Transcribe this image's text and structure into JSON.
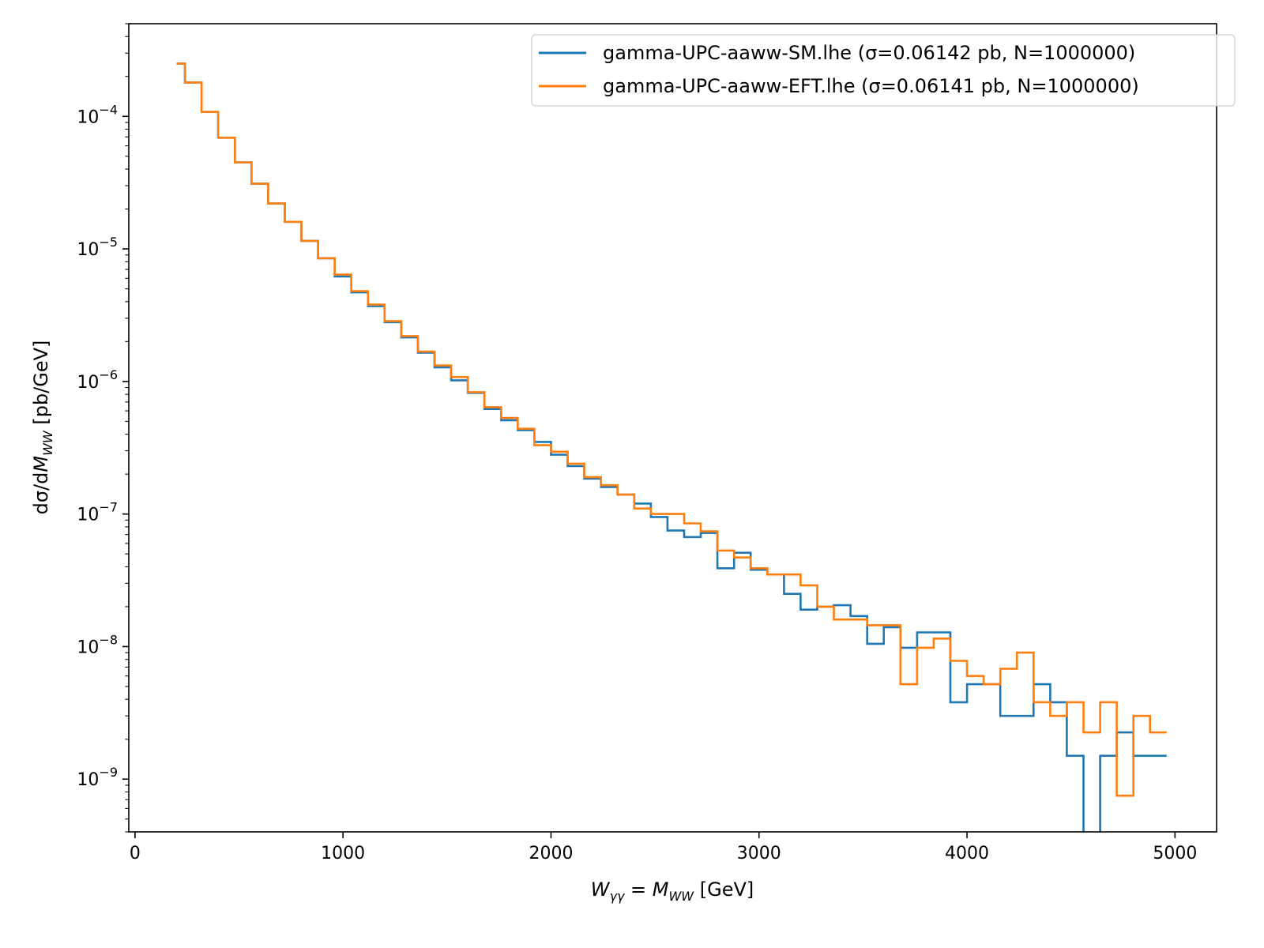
{
  "chart_data": {
    "type": "line",
    "drawstyle": "steps",
    "xlabel": "W_{γγ} = M_{WW} [GeV]",
    "xlabel_parts": {
      "w": "W",
      "w_sub": "γγ",
      "eq": " = ",
      "m": "M",
      "m_sub": "WW",
      "unit": " [GeV]"
    },
    "ylabel": "dσ/dM_{WW} [pb/GeV]",
    "ylabel_parts": {
      "pre": "dσ/d",
      "m": "M",
      "m_sub": "WW",
      "unit": " [pb/GeV]"
    },
    "xlim": [
      -30,
      5200
    ],
    "ylim": [
      4e-10,
      0.0005
    ],
    "yscale": "log",
    "x_ticks": [
      0,
      1000,
      2000,
      3000,
      4000,
      5000
    ],
    "x_tick_labels": [
      "0",
      "1000",
      "2000",
      "3000",
      "4000",
      "5000"
    ],
    "y_ticks": [
      1e-09,
      1e-08,
      1e-07,
      1e-06,
      1e-05,
      0.0001
    ],
    "y_tick_labels": [
      {
        "base": "10",
        "exp": "−9"
      },
      {
        "base": "10",
        "exp": "−8"
      },
      {
        "base": "10",
        "exp": "−7"
      },
      {
        "base": "10",
        "exp": "−6"
      },
      {
        "base": "10",
        "exp": "−5"
      },
      {
        "base": "10",
        "exp": "−4"
      }
    ],
    "legend_position": "top-right",
    "bin_edges": [
      200,
      240,
      320,
      400,
      480,
      560,
      640,
      720,
      800,
      880,
      960,
      1040,
      1120,
      1200,
      1280,
      1360,
      1440,
      1520,
      1600,
      1680,
      1760,
      1840,
      1920,
      2000,
      2080,
      2160,
      2240,
      2320,
      2400,
      2480,
      2560,
      2640,
      2720,
      2800,
      2880,
      2960,
      3040,
      3120,
      3200,
      3280,
      3360,
      3440,
      3520,
      3600,
      3680,
      3760,
      3840,
      3920,
      4000,
      4080,
      4160,
      4240,
      4320,
      4400,
      4480,
      4560,
      4640,
      4720,
      4800,
      4880,
      4960
    ],
    "series": [
      {
        "name": "gamma-UPC-aaww-SM.lhe (σ=0.06142 pb, N=1000000)",
        "color": "#1f77b4",
        "values": [
          0.00025,
          0.00018,
          0.000108,
          6.9e-05,
          4.5e-05,
          3.1e-05,
          2.2e-05,
          1.6e-05,
          1.15e-05,
          8.5e-06,
          6.2e-06,
          4.7e-06,
          3.7e-06,
          2.8e-06,
          2.15e-06,
          1.65e-06,
          1.28e-06,
          1.02e-06,
          8.2e-07,
          6.2e-07,
          5.1e-07,
          4.3e-07,
          3.5e-07,
          2.8e-07,
          2.3e-07,
          1.85e-07,
          1.6e-07,
          1.4e-07,
          1.2e-07,
          9.5e-08,
          7.5e-08,
          6.7e-08,
          7.2e-08,
          3.9e-08,
          5.1e-08,
          3.8e-08,
          3.5e-08,
          2.5e-08,
          1.9e-08,
          2e-08,
          2.05e-08,
          1.7e-08,
          1.05e-08,
          1.4e-08,
          9.8e-09,
          1.28e-08,
          1.28e-08,
          3.8e-09,
          5.2e-09,
          5.2e-09,
          3e-09,
          3e-09,
          5.2e-09,
          3.8e-09,
          1.5e-09,
          1e-10,
          1.5e-09,
          2.25e-09,
          1.5e-09,
          1.5e-09
        ]
      },
      {
        "name": "gamma-UPC-aaww-EFT.lhe (σ=0.06141 pb, N=1000000)",
        "color": "#ff7f0e",
        "values": [
          0.00025,
          0.00018,
          0.000108,
          6.9e-05,
          4.5e-05,
          3.1e-05,
          2.2e-05,
          1.6e-05,
          1.15e-05,
          8.5e-06,
          6.4e-06,
          4.8e-06,
          3.8e-06,
          2.85e-06,
          2.2e-06,
          1.68e-06,
          1.32e-06,
          1.08e-06,
          8.3e-07,
          6.4e-07,
          5.3e-07,
          4.4e-07,
          3.3e-07,
          2.95e-07,
          2.4e-07,
          1.9e-07,
          1.65e-07,
          1.4e-07,
          1.1e-07,
          1e-07,
          1e-07,
          8.5e-08,
          7.4e-08,
          5.3e-08,
          4.7e-08,
          3.9e-08,
          3.5e-08,
          3.5e-08,
          2.9e-08,
          2e-08,
          1.6e-08,
          1.6e-08,
          1.45e-08,
          1.45e-08,
          5.2e-09,
          9.8e-09,
          1.15e-08,
          7.8e-09,
          6e-09,
          5.2e-09,
          6.8e-09,
          9e-09,
          3.8e-09,
          3e-09,
          3.8e-09,
          2.25e-09,
          3.8e-09,
          7.5e-10,
          3e-09,
          2.25e-09
        ]
      }
    ]
  }
}
